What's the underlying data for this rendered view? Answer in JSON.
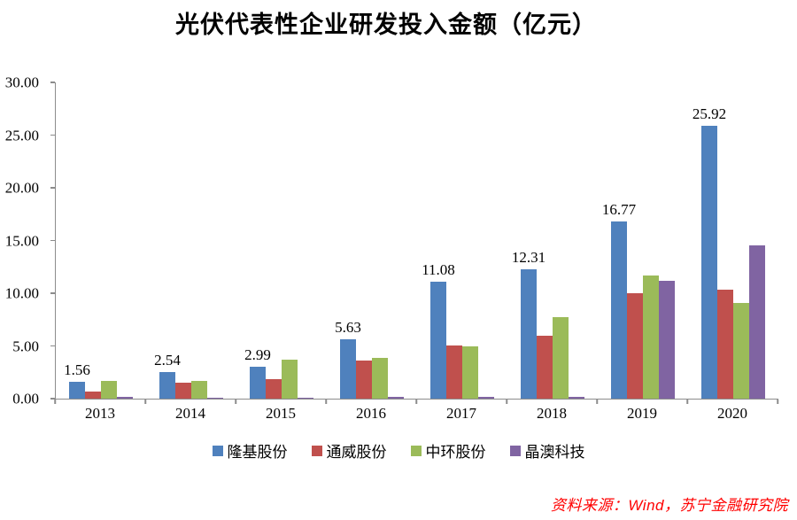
{
  "title": "光伏代表性企业研发投入金额（亿元）",
  "source_note": "资料来源：Wind，苏宁金融研究院",
  "colors": {
    "series_blue": "#4F81BD",
    "series_red": "#C0504D",
    "series_green": "#9BBB59",
    "series_purple": "#8064A2",
    "axis_line": "#8c8c8c",
    "source_text": "#ff0000"
  },
  "chart_data": {
    "type": "bar",
    "title": "光伏代表性企业研发投入金额（亿元）",
    "categories": [
      "2013",
      "2014",
      "2015",
      "2016",
      "2017",
      "2018",
      "2019",
      "2020"
    ],
    "series": [
      {
        "name": "隆基股份",
        "color": "#4F81BD",
        "values": [
          1.56,
          2.54,
          2.99,
          5.63,
          11.08,
          12.31,
          16.77,
          25.92
        ]
      },
      {
        "name": "通威股份",
        "color": "#C0504D",
        "values": [
          0.7,
          1.5,
          1.85,
          3.6,
          5.05,
          6.0,
          10.0,
          10.35
        ]
      },
      {
        "name": "中环股份",
        "color": "#9BBB59",
        "values": [
          1.7,
          1.7,
          3.7,
          3.9,
          4.95,
          7.75,
          11.7,
          9.05
        ]
      },
      {
        "name": "晶澳科技",
        "color": "#8064A2",
        "values": [
          0.15,
          0.1,
          0.1,
          0.2,
          0.2,
          0.2,
          11.2,
          14.5
        ]
      }
    ],
    "data_labels_series": "隆基股份",
    "data_label_format_decimals": 2,
    "xlabel": "",
    "ylabel": "",
    "ylim": [
      0,
      30
    ],
    "ytick_labels": [
      "0.00",
      "5.00",
      "10.00",
      "15.00",
      "20.00",
      "25.00",
      "30.00"
    ],
    "grid": false,
    "legend_position": "bottom"
  }
}
